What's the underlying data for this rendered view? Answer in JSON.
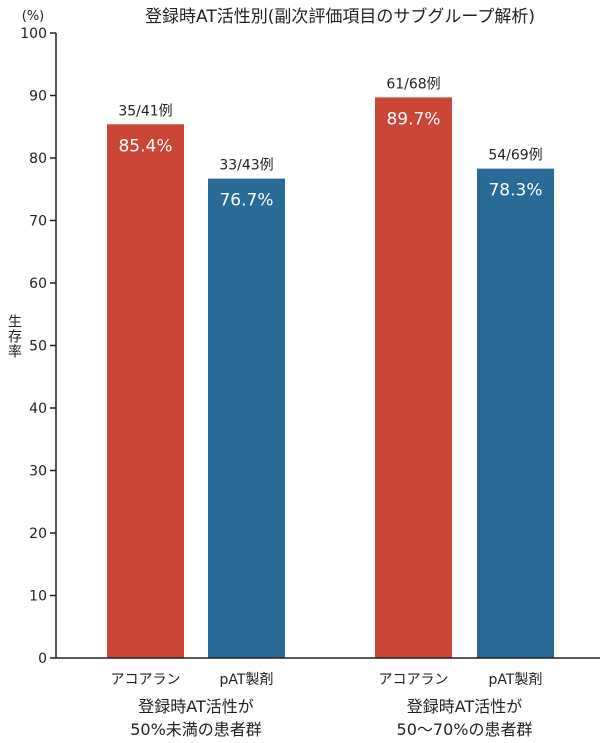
{
  "chart_data": {
    "type": "bar",
    "title": "登録時AT活性別(副次評価項目のサブグループ解析)",
    "yunit": "(%)",
    "ylabel": "生存率",
    "ylim": [
      0,
      100
    ],
    "yticks": [
      0,
      10,
      20,
      30,
      40,
      50,
      60,
      70,
      80,
      90,
      100
    ],
    "groups": [
      {
        "label_line1": "登録時AT活性が",
        "label_line2": "50%未満の患者群",
        "bars": [
          {
            "name": "アコアラン",
            "value": 85.4,
            "value_label": "85.4%",
            "count_label": "35/41例",
            "color": "#cc4638"
          },
          {
            "name": "pAT製剤",
            "value": 76.7,
            "value_label": "76.7%",
            "count_label": "33/43例",
            "color": "#2a6a97"
          }
        ]
      },
      {
        "label_line1": "登録時AT活性が",
        "label_line2": "50〜70%の患者群",
        "bars": [
          {
            "name": "アコアラン",
            "value": 89.7,
            "value_label": "89.7%",
            "count_label": "61/68例",
            "color": "#cc4638"
          },
          {
            "name": "pAT製剤",
            "value": 78.3,
            "value_label": "78.3%",
            "count_label": "54/69例",
            "color": "#2a6a97"
          }
        ]
      }
    ]
  }
}
